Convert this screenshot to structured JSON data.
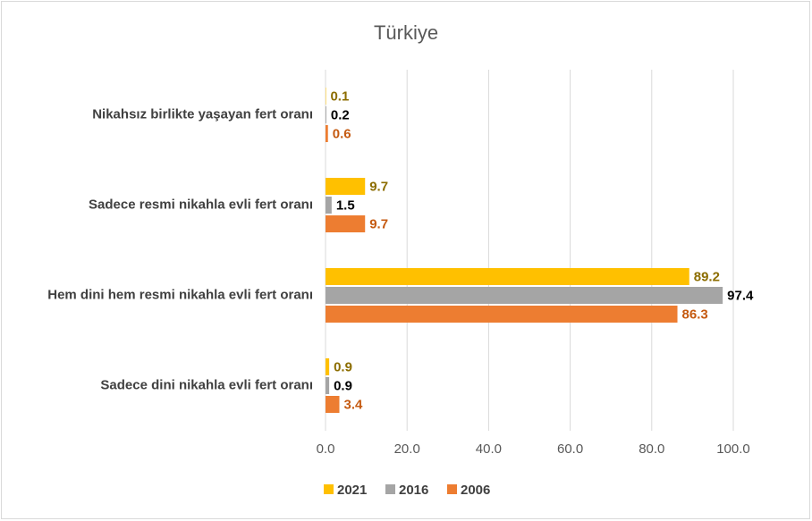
{
  "chart_data": {
    "type": "hbar",
    "title": "Türkiye",
    "categories": [
      "Nikahsız birlikte yaşayan fert oranı",
      "Sadece resmi nikahla evli fert oranı",
      "Hem dini hem resmi nikahla evli fert oranı",
      "Sadece dini nikahla evli fert oranı"
    ],
    "series": [
      {
        "name": "2021",
        "color": "#FFC000",
        "label_color": "#8C6D00",
        "values": [
          0.1,
          9.7,
          89.2,
          0.9
        ]
      },
      {
        "name": "2016",
        "color": "#A5A5A5",
        "label_color": "#000000",
        "values": [
          0.2,
          1.5,
          97.4,
          0.9
        ]
      },
      {
        "name": "2006",
        "color": "#ED7D31",
        "label_color": "#C55A11",
        "values": [
          0.6,
          9.7,
          86.3,
          3.4
        ]
      }
    ],
    "xlim": [
      0,
      100
    ],
    "xticks": [
      {
        "value": 0,
        "label": "0.0"
      },
      {
        "value": 20,
        "label": "20.0"
      },
      {
        "value": 40,
        "label": "40.0"
      },
      {
        "value": 60,
        "label": "60.0"
      },
      {
        "value": 80,
        "label": "80.0"
      },
      {
        "value": 100,
        "label": "100.0"
      }
    ],
    "grid": true,
    "legend": "bottom"
  }
}
